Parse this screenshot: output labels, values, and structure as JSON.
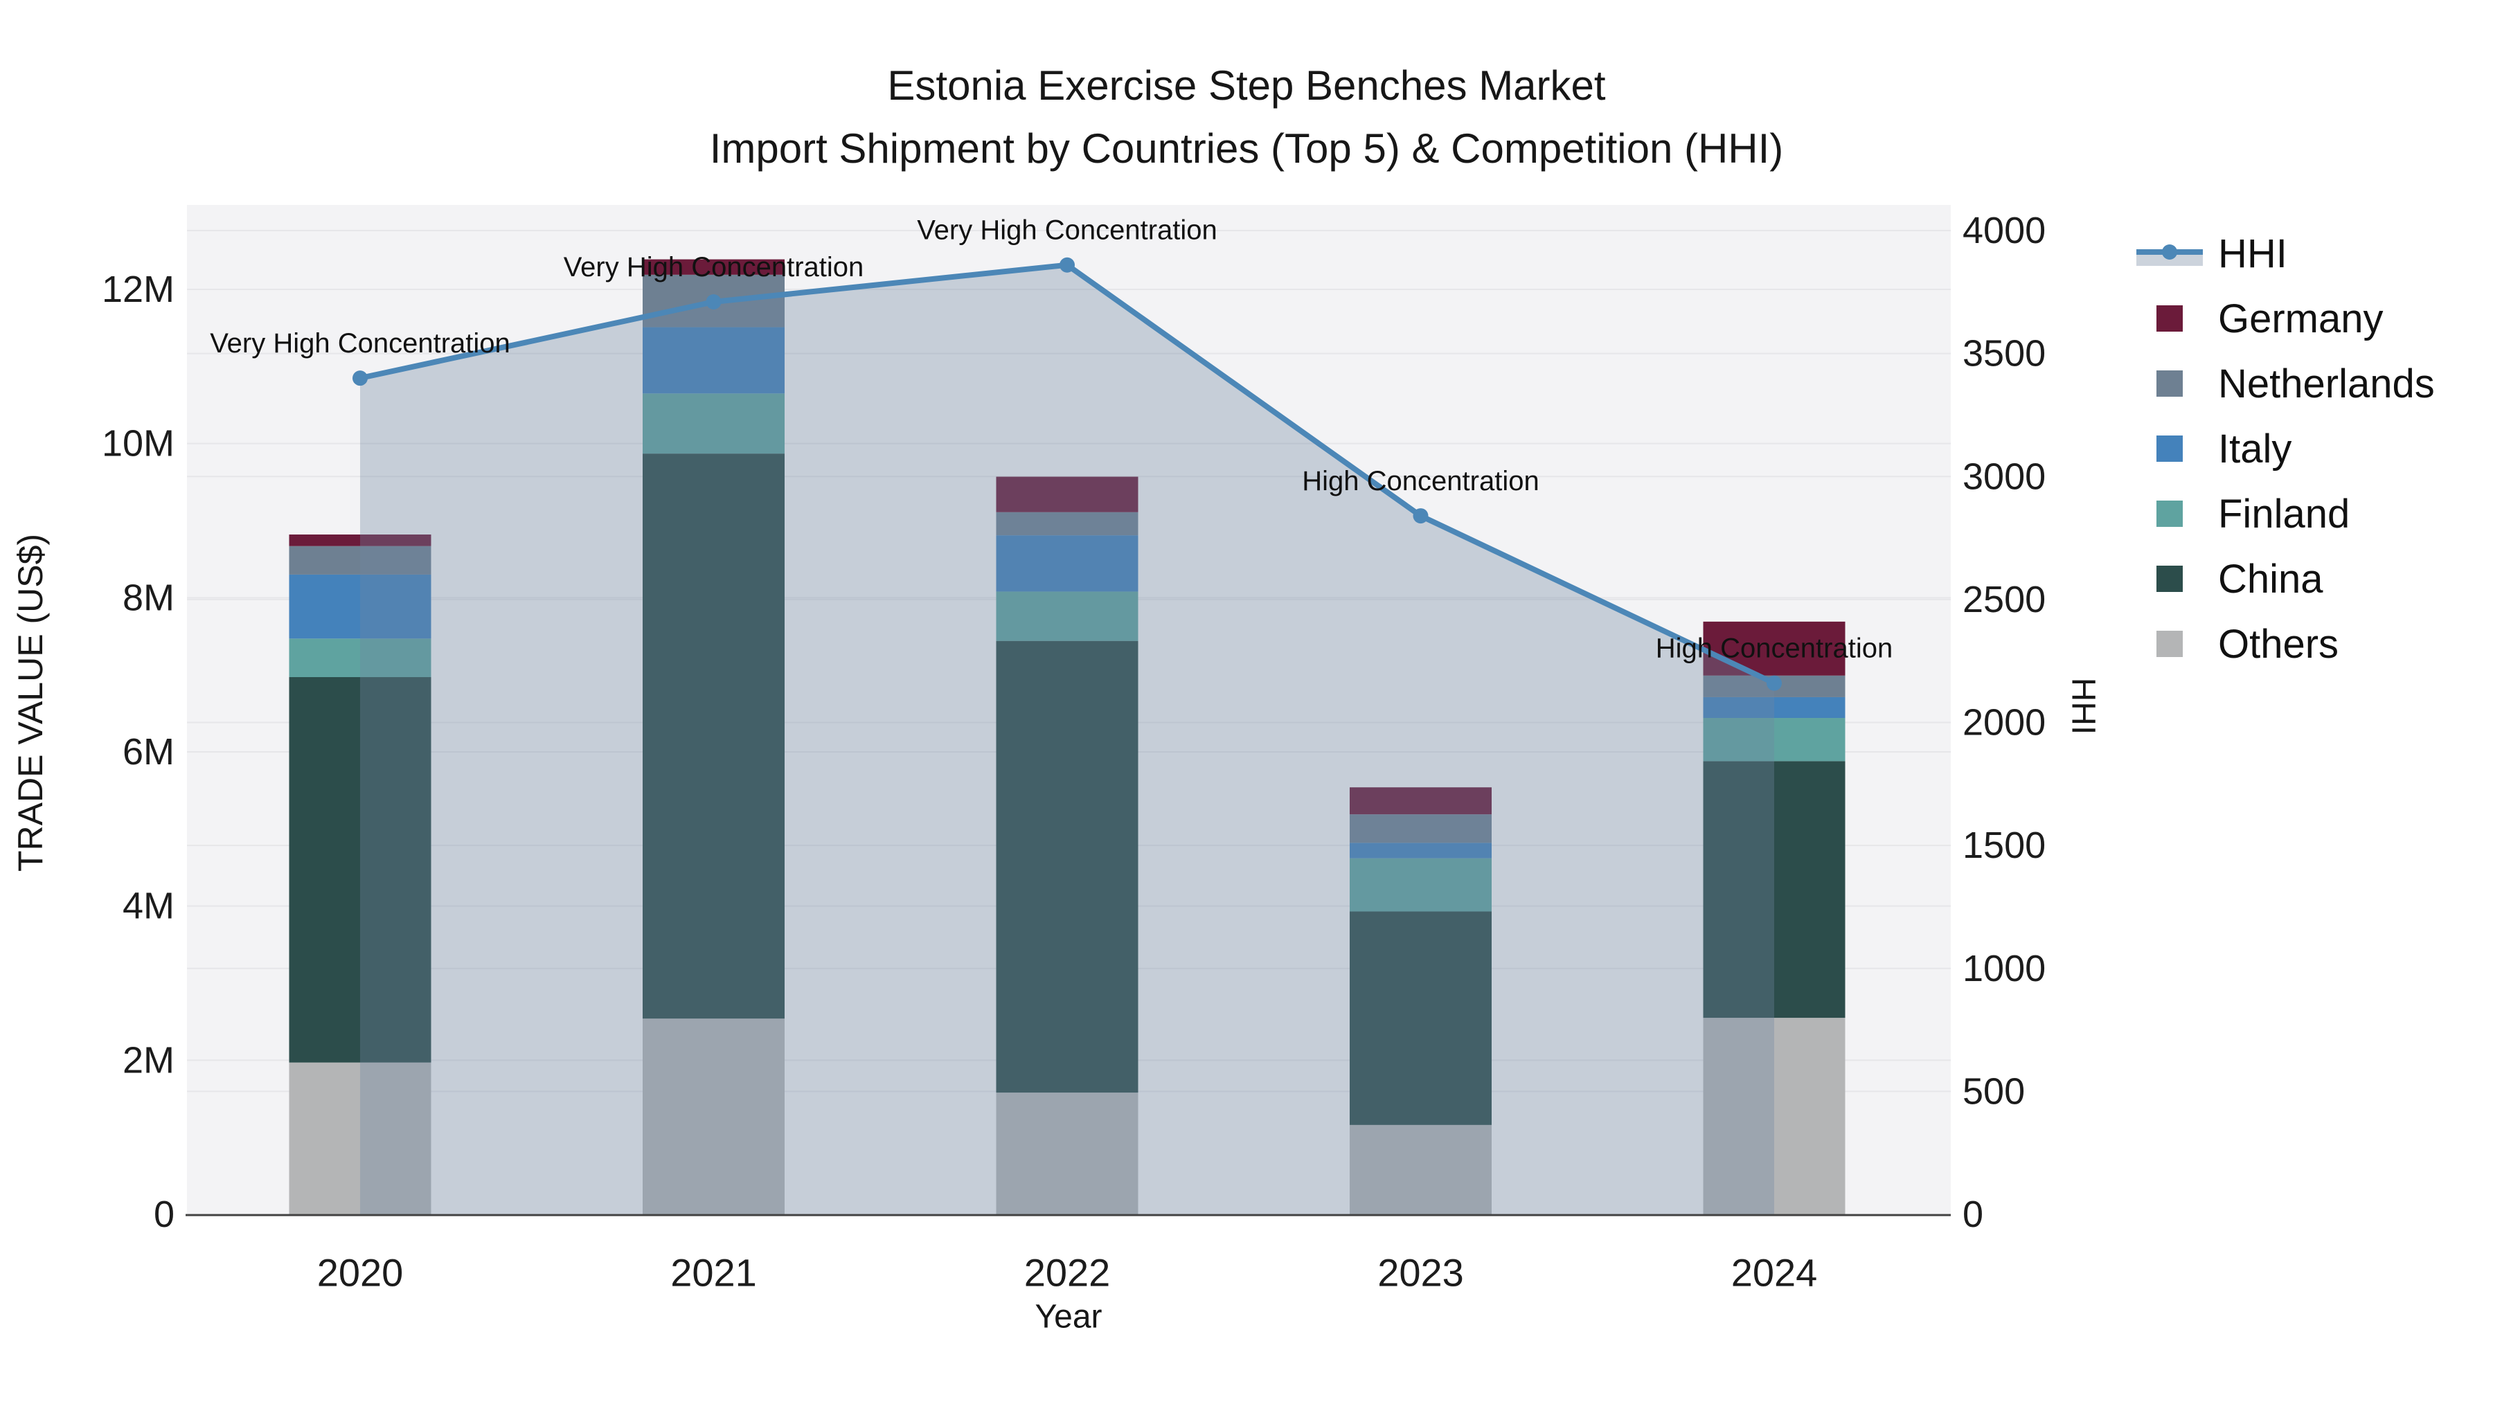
{
  "title": {
    "line1": "Estonia Exercise Step Benches Market",
    "line2": "Import Shipment by Countries (Top 5) & Competition (HHI)"
  },
  "axes": {
    "left": {
      "title": "TRADE VALUE (US$)",
      "ticks": [
        {
          "value": 0,
          "label": "0"
        },
        {
          "value": 2,
          "label": "2M"
        },
        {
          "value": 4,
          "label": "4M"
        },
        {
          "value": 6,
          "label": "6M"
        },
        {
          "value": 8,
          "label": "8M"
        },
        {
          "value": 10,
          "label": "10M"
        },
        {
          "value": 12,
          "label": "12M"
        }
      ]
    },
    "right": {
      "title": "HHI",
      "ticks": [
        {
          "value": 0,
          "label": "0"
        },
        {
          "value": 500,
          "label": "500"
        },
        {
          "value": 1000,
          "label": "1000"
        },
        {
          "value": 1500,
          "label": "1500"
        },
        {
          "value": 2000,
          "label": "2000"
        },
        {
          "value": 2500,
          "label": "2500"
        },
        {
          "value": 3000,
          "label": "3000"
        },
        {
          "value": 3500,
          "label": "3500"
        },
        {
          "value": 4000,
          "label": "4000"
        }
      ]
    },
    "x": {
      "title": "Year",
      "categories": [
        "2020",
        "2021",
        "2022",
        "2023",
        "2024"
      ]
    }
  },
  "legend": {
    "items": [
      {
        "label": "HHI",
        "swatch": "line-area"
      },
      {
        "label": "Germany",
        "swatch": "square"
      },
      {
        "label": "Netherlands",
        "swatch": "square"
      },
      {
        "label": "Italy",
        "swatch": "square"
      },
      {
        "label": "Finland",
        "swatch": "square"
      },
      {
        "label": "China",
        "swatch": "square"
      },
      {
        "label": "Others",
        "swatch": "square"
      }
    ]
  },
  "colors": {
    "Germany": "#6b1b3a",
    "Netherlands": "#6e8092",
    "Italy": "#4482bb",
    "Finland": "#5fa3a0",
    "China": "#2c4d4b",
    "Others": "#b4b5b6",
    "hhi_line": "#4c87b7",
    "hhi_area_fill": "rgba(110,135,160,0.34)",
    "legend_area_band": "#ccd3dc",
    "plot_bg": "#f3f3f5",
    "grid": "#e6e6e9",
    "axis_line": "#424242",
    "text": "#1c1c1c"
  },
  "chart_data": {
    "type": "bar+line",
    "title": "Estonia Exercise Step Benches Market — Import Shipment by Countries (Top 5) & Competition (HHI)",
    "categories": [
      "2020",
      "2021",
      "2022",
      "2023",
      "2024"
    ],
    "bar_value_unit": "million US$",
    "bar_stack_order_bottom_to_top": [
      "Others",
      "China",
      "Finland",
      "Italy",
      "Netherlands",
      "Germany"
    ],
    "series": [
      {
        "name": "Others",
        "values": [
          1.97,
          2.54,
          1.58,
          1.16,
          2.55
        ]
      },
      {
        "name": "China",
        "values": [
          5.0,
          7.33,
          5.86,
          2.77,
          3.33
        ]
      },
      {
        "name": "Finland",
        "values": [
          0.5,
          0.78,
          0.64,
          0.69,
          0.56
        ]
      },
      {
        "name": "Italy",
        "values": [
          0.83,
          0.86,
          0.73,
          0.2,
          0.27
        ]
      },
      {
        "name": "Netherlands",
        "values": [
          0.37,
          0.68,
          0.3,
          0.37,
          0.28
        ]
      },
      {
        "name": "Germany",
        "values": [
          0.15,
          0.2,
          0.46,
          0.35,
          0.7
        ]
      }
    ],
    "bar_totals": [
      8.82,
      12.39,
      9.57,
      5.54,
      7.69
    ],
    "line_series": {
      "name": "HHI",
      "axis": "right",
      "values": [
        3400,
        3710,
        3860,
        2840,
        2160
      ]
    },
    "annotations": [
      {
        "category": "2020",
        "text": "Very High Concentration"
      },
      {
        "category": "2021",
        "text": "Very High Concentration"
      },
      {
        "category": "2022",
        "text": "Very High Concentration"
      },
      {
        "category": "2023",
        "text": "High Concentration"
      },
      {
        "category": "2024",
        "text": "High Concentration"
      }
    ],
    "xlabel": "Year",
    "ylabel_left": "TRADE VALUE (US$)",
    "ylabel_right": "HHI",
    "ylim_left": [
      0,
      13000000
    ],
    "ylim_right": [
      0,
      4100
    ],
    "grid": true,
    "legend_position": "right"
  }
}
